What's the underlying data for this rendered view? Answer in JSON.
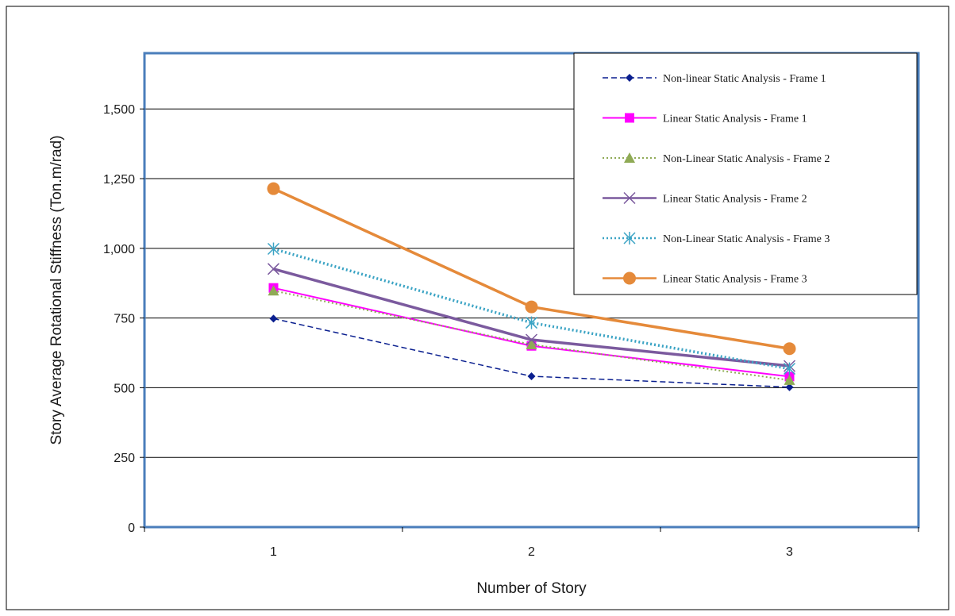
{
  "chart_data": {
    "type": "line",
    "categories": [
      "1",
      "2",
      "3"
    ],
    "xlabel": "Number of Story",
    "ylabel": "Story Average Rotational Stiffness (Ton.m/rad)",
    "ylim": [
      0,
      1700
    ],
    "yticks": [
      0,
      250,
      500,
      750,
      1000,
      1250,
      1500
    ],
    "ytick_labels": [
      "0",
      "250",
      "500",
      "750",
      "1,000",
      "1,250",
      "1,500"
    ],
    "grid": true,
    "legend_position": "top-right",
    "series": [
      {
        "name": "Non-linear Static Analysis - Frame 1",
        "values": [
          748,
          541,
          502
        ],
        "color": "#0a1f8f",
        "dash": "dashed",
        "marker": "diamond",
        "width": 1.5
      },
      {
        "name": "Linear Static Analysis - Frame 1",
        "values": [
          858,
          650,
          540
        ],
        "color": "#ff00ff",
        "dash": "solid",
        "marker": "square",
        "width": 2
      },
      {
        "name": "Non-Linear Static Analysis - Frame 2",
        "values": [
          848,
          655,
          527
        ],
        "color": "#8faa55",
        "dash": "dotted",
        "marker": "triangle",
        "width": 2
      },
      {
        "name": "Linear Static Analysis - Frame 2",
        "values": [
          926,
          672,
          578
        ],
        "color": "#7b5a9e",
        "dash": "solid",
        "marker": "x",
        "width": 3.5
      },
      {
        "name": "Non-Linear Static Analysis - Frame 3",
        "values": [
          998,
          733,
          568
        ],
        "color": "#3aa3c4",
        "dash": "dotted",
        "marker": "asterisk",
        "width": 3.5
      },
      {
        "name": "Linear Static Analysis - Frame 3",
        "values": [
          1214,
          790,
          640
        ],
        "color": "#e58a3a",
        "dash": "solid",
        "marker": "circle",
        "width": 3.5
      }
    ]
  }
}
